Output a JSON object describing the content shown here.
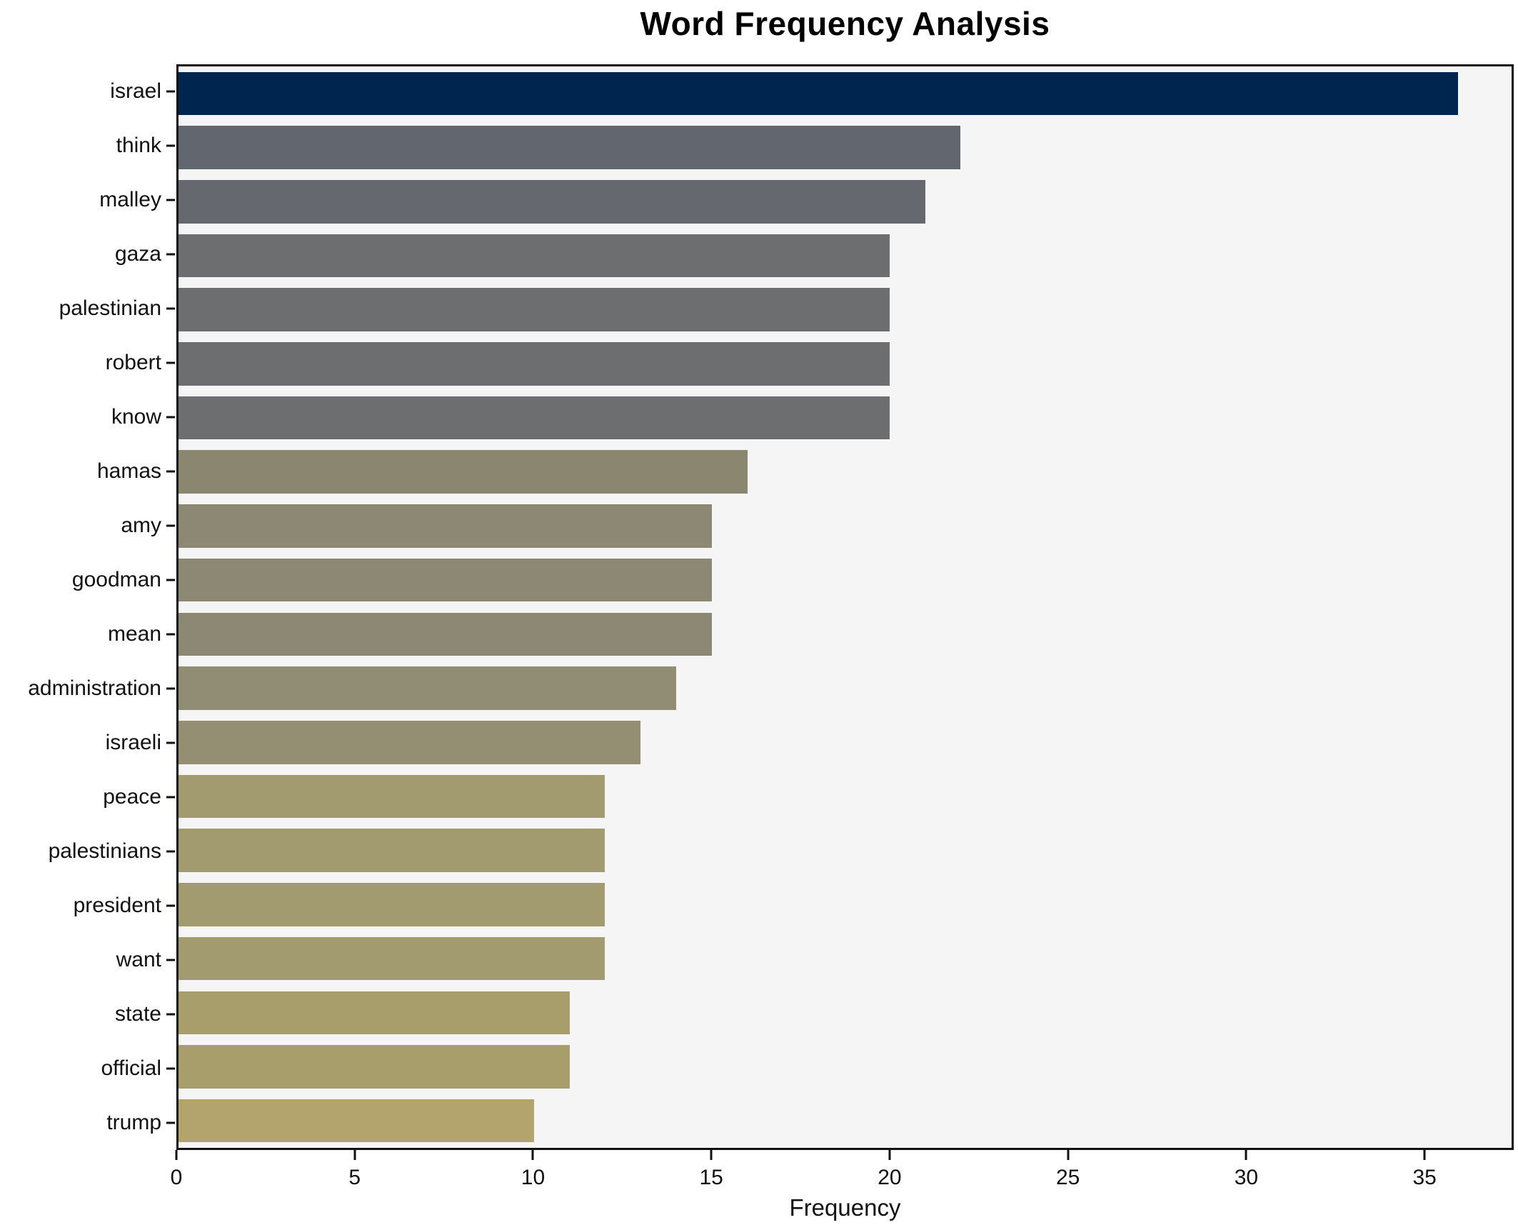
{
  "chart": {
    "title": "Word Frequency Analysis",
    "xlabel": "Frequency"
  },
  "chart_data": {
    "type": "bar",
    "orientation": "horizontal",
    "title": "Word Frequency Analysis",
    "xlabel": "Frequency",
    "ylabel": "",
    "xlim": [
      0,
      37.5
    ],
    "xticks": [
      0,
      5,
      10,
      15,
      20,
      25,
      30,
      35
    ],
    "grid": false,
    "legend": null,
    "plot_background": "#f5f5f6",
    "figure_background": "#ffffff",
    "categories": [
      "israel",
      "think",
      "malley",
      "gaza",
      "palestinian",
      "robert",
      "know",
      "hamas",
      "amy",
      "goodman",
      "mean",
      "administration",
      "israeli",
      "peace",
      "palestinians",
      "president",
      "want",
      "state",
      "official",
      "trump"
    ],
    "values": [
      36,
      22,
      21,
      20,
      20,
      20,
      20,
      16,
      15,
      15,
      15,
      14,
      13,
      12,
      12,
      12,
      12,
      11,
      11,
      10
    ],
    "bar_colors": [
      "#00254e",
      "#62666e",
      "#66686f",
      "#6c6e6f",
      "#6c6e6f",
      "#6c6e6f",
      "#6c6e6f",
      "#8a8670",
      "#8d8873",
      "#8d8873",
      "#8d8873",
      "#918c74",
      "#948e72",
      "#a39b70",
      "#a39b70",
      "#a39b70",
      "#a39b70",
      "#a79e6c",
      "#a79e6c",
      "#b2a46c"
    ]
  }
}
